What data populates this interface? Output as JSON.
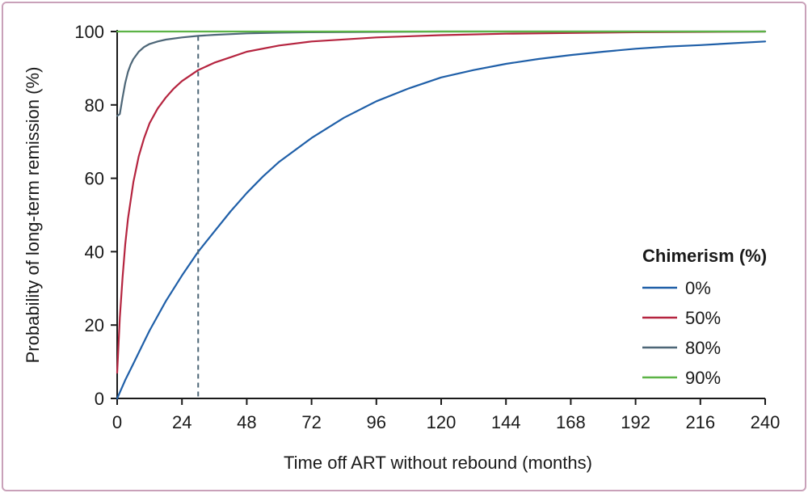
{
  "chart_data": {
    "type": "line",
    "title": "",
    "xlabel": "Time off ART without rebound (months)",
    "ylabel": "Probability of long-term remission (%)",
    "xlim": [
      0,
      240
    ],
    "ylim": [
      0,
      100
    ],
    "x_ticks": [
      0,
      24,
      48,
      72,
      96,
      120,
      144,
      168,
      192,
      216,
      240
    ],
    "y_ticks": [
      0,
      20,
      40,
      60,
      80,
      100
    ],
    "grid": false,
    "legend_title": "Chimerism (%)",
    "legend_position": "right",
    "reference_line_x": 30,
    "series": [
      {
        "name": "0%",
        "color": "#1f5fa8",
        "x": [
          0,
          3,
          6,
          9,
          12,
          18,
          24,
          30,
          36,
          42,
          48,
          54,
          60,
          72,
          84,
          96,
          108,
          120,
          132,
          144,
          156,
          168,
          180,
          192,
          204,
          216,
          228,
          240
        ],
        "y": [
          0,
          5,
          9.5,
          14,
          18.5,
          26.5,
          33.5,
          40,
          45.5,
          51,
          56,
          60.5,
          64.5,
          71,
          76.5,
          81,
          84.5,
          87.5,
          89.5,
          91.2,
          92.5,
          93.6,
          94.5,
          95.3,
          95.9,
          96.3,
          96.8,
          97.3
        ]
      },
      {
        "name": "50%",
        "color": "#b5243f",
        "x": [
          0,
          1,
          2,
          3,
          4,
          6,
          8,
          10,
          12,
          15,
          18,
          21,
          24,
          30,
          36,
          42,
          48,
          60,
          72,
          96,
          120,
          144,
          168,
          192,
          216,
          240
        ],
        "y": [
          7,
          22,
          33,
          42,
          49,
          59,
          66,
          71,
          75,
          79,
          82,
          84.5,
          86.5,
          89.5,
          91.5,
          93,
          94.5,
          96.2,
          97.3,
          98.4,
          99,
          99.4,
          99.6,
          99.8,
          99.9,
          100
        ]
      },
      {
        "name": "80%",
        "color": "#4d6677",
        "x": [
          0,
          1,
          2,
          3,
          4,
          5,
          6,
          8,
          10,
          12,
          15,
          18,
          24,
          30,
          36,
          48,
          60,
          72,
          96,
          120,
          240
        ],
        "y": [
          77,
          77.5,
          82,
          86,
          89,
          91,
          92.5,
          94.5,
          95.8,
          96.6,
          97.3,
          97.8,
          98.4,
          98.8,
          99.1,
          99.5,
          99.7,
          99.8,
          99.9,
          100,
          100
        ]
      },
      {
        "name": "90%",
        "color": "#5cb346",
        "x": [
          0,
          240
        ],
        "y": [
          100,
          100
        ]
      }
    ]
  }
}
